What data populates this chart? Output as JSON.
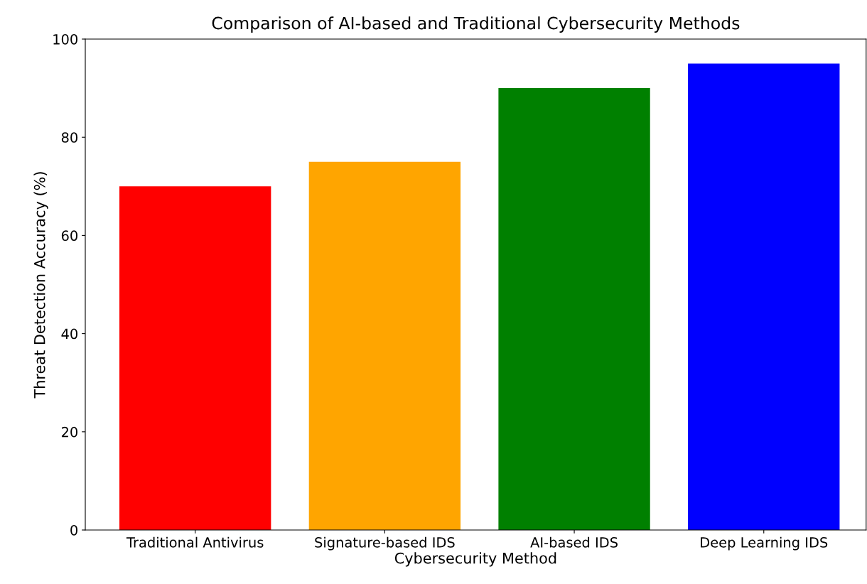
{
  "chart_data": {
    "type": "bar",
    "title": "Comparison of AI-based and Traditional Cybersecurity Methods",
    "xlabel": "Cybersecurity Method",
    "ylabel": "Threat Detection Accuracy (%)",
    "categories": [
      "Traditional Antivirus",
      "Signature-based IDS",
      "AI-based IDS",
      "Deep Learning IDS"
    ],
    "values": [
      70,
      75,
      90,
      95
    ],
    "colors": [
      "#ff0000",
      "#ffa500",
      "#008000",
      "#0000ff"
    ],
    "ylim": [
      0,
      100
    ],
    "yticks": [
      0,
      20,
      40,
      60,
      80,
      100
    ]
  }
}
